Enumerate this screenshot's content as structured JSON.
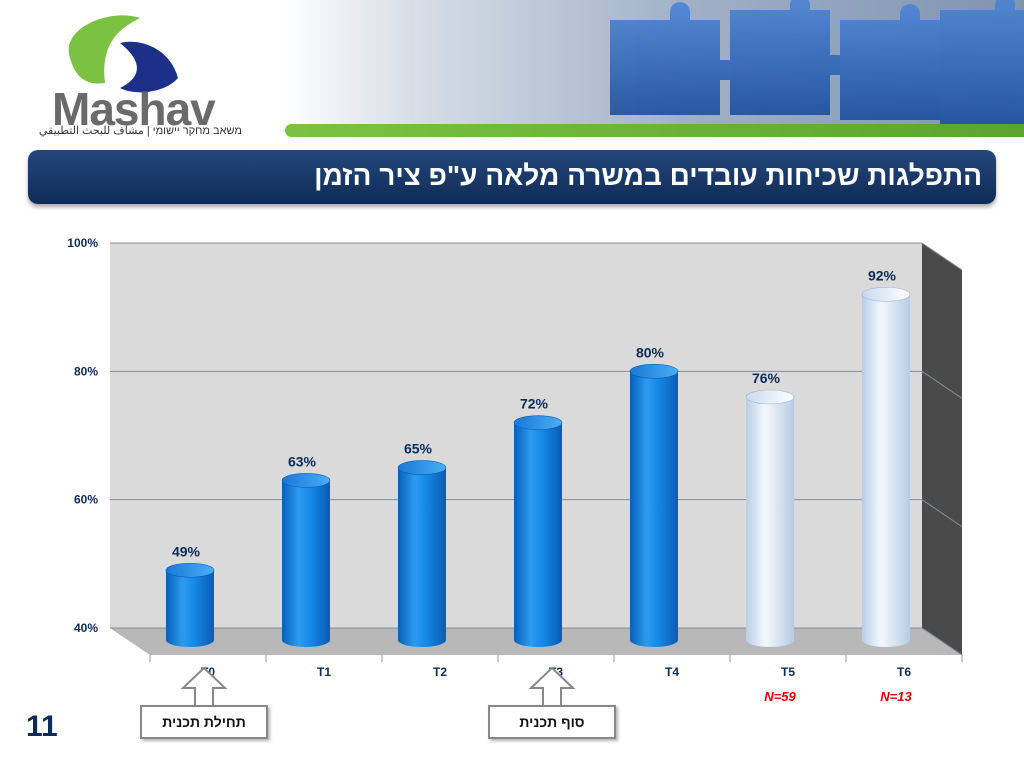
{
  "logo": {
    "name": "Mashav",
    "subtitle": "משאב מחקר יישומי | مشاف للبحث التطبيقي"
  },
  "title": "התפלגות שכיחות עובדים במשרה מלאה ע\"פ ציר הזמן",
  "page_number": "11",
  "colors": {
    "bar_primary": "#1a8ae6",
    "bar_light": "#d9e8f8",
    "title_bg": "#17366a",
    "sample_text": "#e00000"
  },
  "chart_data": {
    "type": "bar",
    "categories": [
      "T0",
      "T1",
      "T2",
      "T3",
      "T4",
      "T5",
      "T6"
    ],
    "values": [
      49,
      63,
      65,
      72,
      80,
      76,
      92
    ],
    "value_labels": [
      "49%",
      "63%",
      "65%",
      "72%",
      "80%",
      "76%",
      "92%"
    ],
    "bar_style": [
      "dark",
      "dark",
      "dark",
      "dark",
      "dark",
      "light",
      "light"
    ],
    "ylim": [
      40,
      100
    ],
    "yticks": [
      {
        "value": 100,
        "label": "100%"
      },
      {
        "value": 80,
        "label": "80%"
      },
      {
        "value": 60,
        "label": "60%"
      },
      {
        "value": 40,
        "label": "40%"
      }
    ],
    "sample_sizes": [
      "",
      "",
      "",
      "",
      "",
      "N=59",
      "N=13"
    ],
    "grid": true,
    "xlabel": "",
    "ylabel": ""
  },
  "callouts": [
    {
      "category": "T0",
      "label": "תחילת תכנית"
    },
    {
      "category": "T3",
      "label": "סוף תכנית"
    }
  ]
}
